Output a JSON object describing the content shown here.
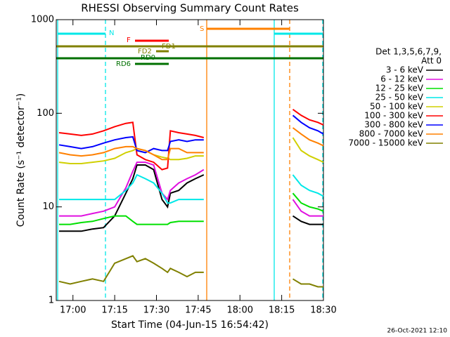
{
  "chart_data": {
    "type": "line",
    "title": "RHESSI Observing Summary Count Rates",
    "x_label": "Start Time (04-Jun-15 16:54:42)",
    "y_label": "Count Rate (s⁻¹ detector⁻¹)",
    "timestamp": "26-Oct-2021 12:10",
    "legend_title": [
      "Det 1,3,5,6,7,9,",
      "Att 0"
    ],
    "log_y": true,
    "xlim": [
      -6,
      90
    ],
    "ylim": [
      1,
      1000
    ],
    "xticks": [
      {
        "value": 0,
        "label": "17:00"
      },
      {
        "value": 15,
        "label": "17:15"
      },
      {
        "value": 30,
        "label": "17:30"
      },
      {
        "value": 45,
        "label": "17:45"
      },
      {
        "value": 60,
        "label": "18:00"
      },
      {
        "value": 75,
        "label": "18:15"
      },
      {
        "value": 90,
        "label": "18:30"
      }
    ],
    "yticks": [
      1,
      10,
      100,
      1000
    ],
    "annotations": [
      "N",
      "S",
      "F",
      "FD1",
      "FD2",
      "RD0",
      "RD6"
    ],
    "x": [
      -5,
      -1,
      3,
      7,
      11,
      15,
      19,
      21.5,
      23,
      26,
      29,
      32,
      34,
      35,
      38,
      41,
      44,
      47,
      60,
      79,
      82,
      85,
      88,
      90
    ],
    "series": [
      {
        "name": "3 - 6 keV",
        "color": "#000000",
        "values": [
          5.5,
          5.5,
          5.5,
          5.8,
          6,
          8,
          14,
          20,
          28,
          28,
          25,
          12,
          10,
          14,
          15,
          18,
          20,
          22,
          null,
          8,
          7,
          6.5,
          6.5,
          6.5
        ]
      },
      {
        "name": "6 - 12 keV",
        "color": "#e010e0",
        "values": [
          8,
          8,
          8,
          8.5,
          9,
          10,
          16,
          24,
          30,
          30,
          28,
          14,
          12,
          15,
          18,
          20,
          22,
          25,
          null,
          12,
          9,
          8,
          8,
          8
        ]
      },
      {
        "name": "12 - 25 keV",
        "color": "#00e000",
        "values": [
          6.5,
          6.5,
          6.8,
          7,
          7.5,
          8,
          8,
          7,
          6.5,
          6.5,
          6.5,
          6.5,
          6.5,
          6.8,
          7,
          7,
          7,
          7,
          null,
          14,
          11,
          10,
          9.5,
          9
        ]
      },
      {
        "name": "25 - 50 keV",
        "color": "#00e8e8",
        "values": [
          12,
          12,
          12,
          12,
          12,
          12,
          15,
          18,
          22,
          20,
          18,
          14,
          11,
          11,
          12,
          12,
          12,
          12,
          null,
          22,
          17,
          15,
          14,
          13
        ]
      },
      {
        "name": "50 - 100 keV",
        "color": "#d0d000",
        "values": [
          30,
          29,
          29,
          30,
          31,
          33,
          38,
          40,
          42,
          40,
          36,
          34,
          33,
          32,
          32,
          33,
          35,
          35,
          null,
          55,
          40,
          35,
          32,
          30
        ]
      },
      {
        "name": "100 - 300 keV",
        "color": "#ff0000",
        "values": [
          62,
          60,
          58,
          60,
          65,
          72,
          78,
          80,
          36,
          32,
          30,
          25,
          26,
          65,
          62,
          60,
          58,
          55,
          null,
          110,
          95,
          85,
          80,
          75
        ]
      },
      {
        "name": "300 - 800 keV",
        "color": "#0000ff",
        "values": [
          46,
          44,
          42,
          44,
          48,
          52,
          55,
          56,
          40,
          38,
          42,
          40,
          40,
          50,
          52,
          50,
          52,
          52,
          null,
          95,
          80,
          70,
          65,
          60
        ]
      },
      {
        "name": "800 - 7000 keV",
        "color": "#ff8000",
        "values": [
          38,
          36,
          35,
          36,
          38,
          42,
          44,
          44,
          42,
          40,
          36,
          32,
          32,
          42,
          42,
          38,
          38,
          38,
          null,
          70,
          60,
          52,
          48,
          45
        ]
      },
      {
        "name": "7000 - 15000 keV",
        "color": "#808000",
        "values": [
          1.6,
          1.5,
          1.6,
          1.7,
          1.6,
          2.5,
          2.8,
          3,
          2.6,
          2.8,
          2.5,
          2.2,
          2,
          2.2,
          2,
          1.8,
          2,
          2,
          null,
          1.7,
          1.5,
          1.5,
          1.4,
          1.4
        ]
      }
    ]
  }
}
